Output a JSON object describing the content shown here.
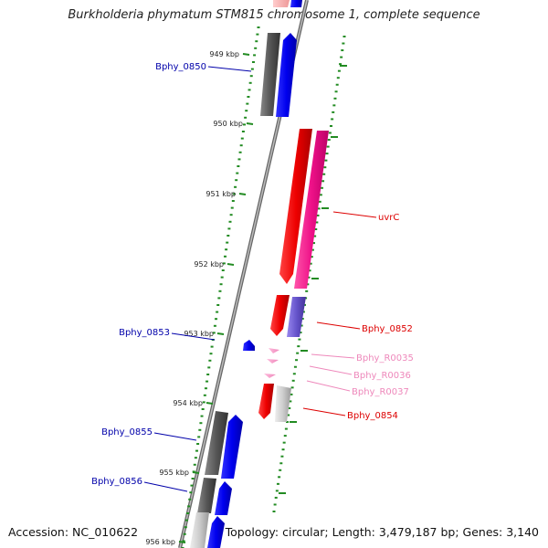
{
  "title": "Burkholderia phymatum STM815 chromosome 1, complete sequence",
  "footer": {
    "accession": "Accession: NC_010622",
    "summary": "Topology: circular; Length: 3,479,187 bp; Genes: 3,140"
  },
  "colors": {
    "forward": "#0000ee",
    "reverse": "#ee0000",
    "rna": "#ff99cc",
    "pseudo_dark": "#555555",
    "axis": "#888888",
    "tick": "#228b22"
  },
  "scale_labels": [
    "949 kbp",
    "950 kbp",
    "951 kbp",
    "952 kbp",
    "953 kbp",
    "954 kbp",
    "955 kbp",
    "956 kbp"
  ],
  "genes": [
    {
      "label": "Bphy_0850",
      "color": "#0000aa"
    },
    {
      "label": "uvrC",
      "color": "#dd0000"
    },
    {
      "label": "Bphy_0852",
      "color": "#dd0000"
    },
    {
      "label": "Bphy_0853",
      "color": "#0000aa"
    },
    {
      "label": "Bphy_R0035",
      "color": "#ee88bb"
    },
    {
      "label": "Bphy_R0036",
      "color": "#ee88bb"
    },
    {
      "label": "Bphy_R0037",
      "color": "#ee88bb"
    },
    {
      "label": "Bphy_0854",
      "color": "#dd0000"
    },
    {
      "label": "Bphy_0855",
      "color": "#0000aa"
    },
    {
      "label": "Bphy_0856",
      "color": "#0000aa"
    }
  ]
}
